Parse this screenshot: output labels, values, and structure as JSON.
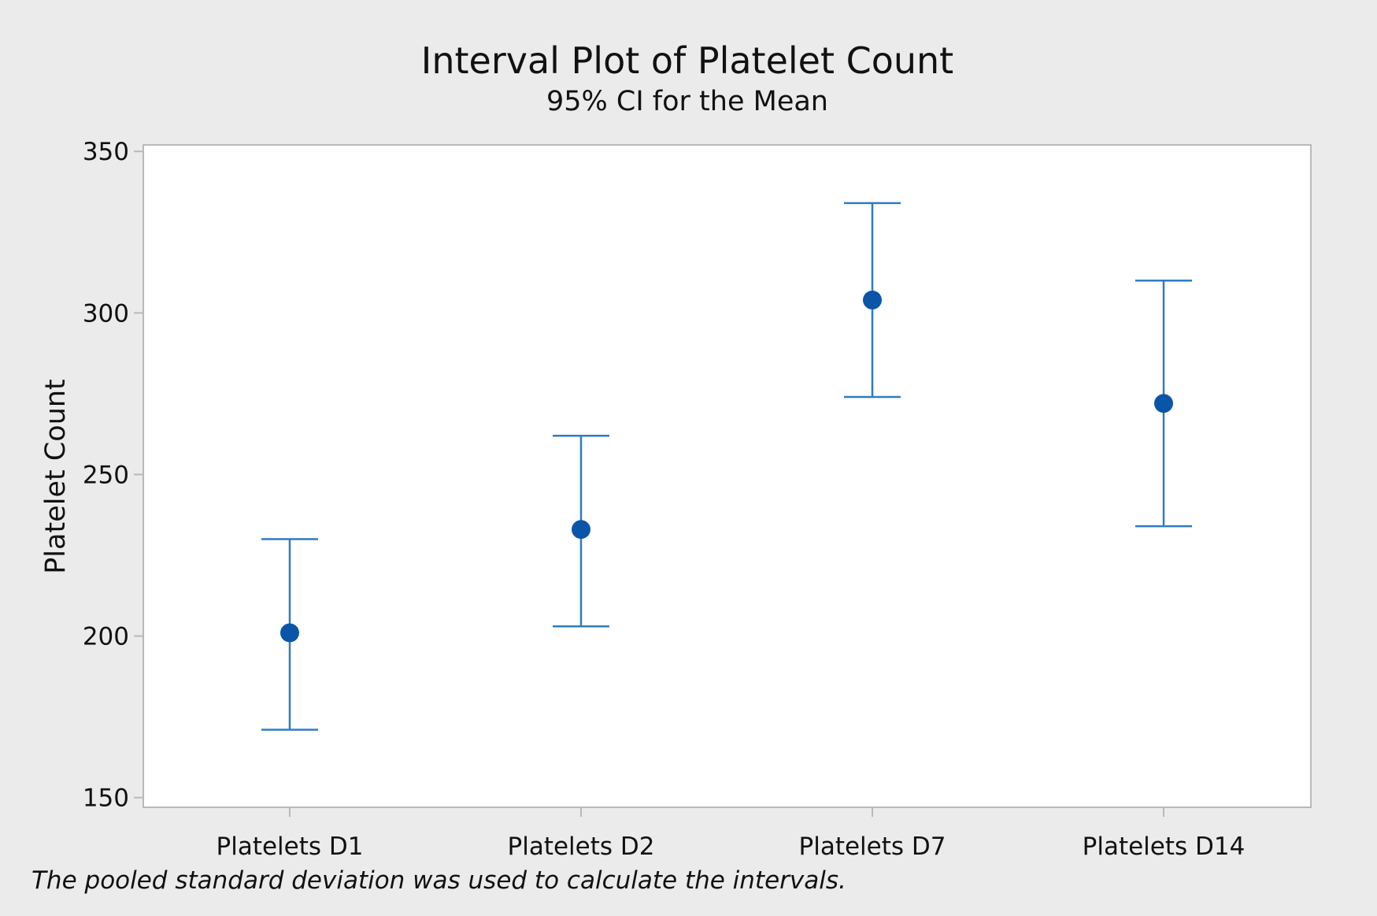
{
  "chart_data": {
    "type": "scatter",
    "title": "Interval Plot of Platelet Count",
    "subtitle": "95% CI for the Mean",
    "xlabel": "",
    "ylabel": "Platelet Count",
    "categories": [
      "Platelets D1",
      "Platelets D2",
      "Platelets D7",
      "Platelets D14"
    ],
    "series": [
      {
        "means": [
          201,
          233,
          304,
          272
        ],
        "ci_lower": [
          171,
          203,
          274,
          234
        ],
        "ci_upper": [
          230,
          262,
          334,
          310
        ]
      }
    ],
    "ylim": [
      147,
      352
    ],
    "yticks": [
      150,
      200,
      250,
      300,
      350
    ],
    "grid": false,
    "footnote": "The pooled standard deviation was used to calculate the intervals.",
    "colors": {
      "marker": "#0a55a8",
      "interval": "#2f7cc4",
      "frame": "#b9b9b9",
      "plot_background": "#ffffff",
      "figure_background": "#ebebeb"
    }
  }
}
